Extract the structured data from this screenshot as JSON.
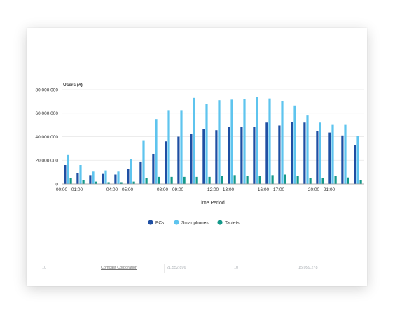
{
  "colors": {
    "pcs": "#1f4fa3",
    "smartphones": "#5ec4ee",
    "tablets": "#14998a",
    "grid": "#e6e6e6",
    "axis": "#999999"
  },
  "table_fragment": {
    "col1": "10",
    "col2": "Comcast Corporation",
    "col3": "21,552,896",
    "col4": "10",
    "col5": "15,059,278"
  },
  "chart_data": {
    "type": "bar",
    "ylabel": "Users (#)",
    "xlabel": "Time Period",
    "ylim": [
      0,
      80000000
    ],
    "yticks": [
      {
        "value": 0,
        "label": "0"
      },
      {
        "value": 20000000,
        "label": "20,000,000"
      },
      {
        "value": 40000000,
        "label": "40,000,000"
      },
      {
        "value": 60000000,
        "label": "60,000,000"
      },
      {
        "value": 80000000,
        "label": "80,000,000"
      }
    ],
    "xtick_labels": [
      {
        "index": 0,
        "label": "00:00 - 01:00"
      },
      {
        "index": 4,
        "label": "04:00 - 05:00"
      },
      {
        "index": 8,
        "label": "08:00 - 09:00"
      },
      {
        "index": 12,
        "label": "12:00 - 13:00"
      },
      {
        "index": 16,
        "label": "16:00 - 17:00"
      },
      {
        "index": 20,
        "label": "20:00 - 21:00"
      }
    ],
    "categories": [
      "00:00 - 01:00",
      "01:00 - 02:00",
      "02:00 - 03:00",
      "03:00 - 04:00",
      "04:00 - 05:00",
      "05:00 - 06:00",
      "06:00 - 07:00",
      "07:00 - 08:00",
      "08:00 - 09:00",
      "09:00 - 10:00",
      "10:00 - 11:00",
      "11:00 - 12:00",
      "12:00 - 13:00",
      "13:00 - 14:00",
      "14:00 - 15:00",
      "15:00 - 16:00",
      "16:00 - 17:00",
      "17:00 - 18:00",
      "18:00 - 19:00",
      "19:00 - 20:00",
      "20:00 - 21:00",
      "21:00 - 22:00",
      "22:00 - 23:00",
      "23:00 - 00:00"
    ],
    "series": [
      {
        "name": "PCs",
        "color_key": "pcs",
        "values": [
          16000000,
          9000000,
          7500000,
          8500000,
          8000000,
          12500000,
          19000000,
          25500000,
          36000000,
          40000000,
          42500000,
          46500000,
          45500000,
          48000000,
          48000000,
          48500000,
          52000000,
          49500000,
          52500000,
          52000000,
          44500000,
          43500000,
          41000000,
          33000000
        ]
      },
      {
        "name": "Smartphones",
        "color_key": "smartphones",
        "values": [
          25000000,
          16000000,
          10500000,
          11500000,
          10500000,
          21000000,
          37000000,
          55000000,
          62000000,
          62000000,
          73000000,
          68000000,
          71000000,
          71500000,
          72000000,
          74000000,
          72500000,
          70000000,
          66500000,
          58000000,
          52000000,
          50000000,
          50000000,
          40500000
        ]
      },
      {
        "name": "Tablets",
        "color_key": "tablets",
        "values": [
          5000000,
          3500000,
          2000000,
          1500000,
          1500000,
          2000000,
          5000000,
          6000000,
          6000000,
          6000000,
          6000000,
          6000000,
          7000000,
          7500000,
          7000000,
          7000000,
          7500000,
          8000000,
          7000000,
          5000000,
          5000000,
          7000000,
          5500000,
          3000000
        ]
      }
    ],
    "legend": {
      "position": "bottom-center",
      "entries": [
        "PCs",
        "Smartphones",
        "Tablets"
      ]
    },
    "grid": true
  }
}
